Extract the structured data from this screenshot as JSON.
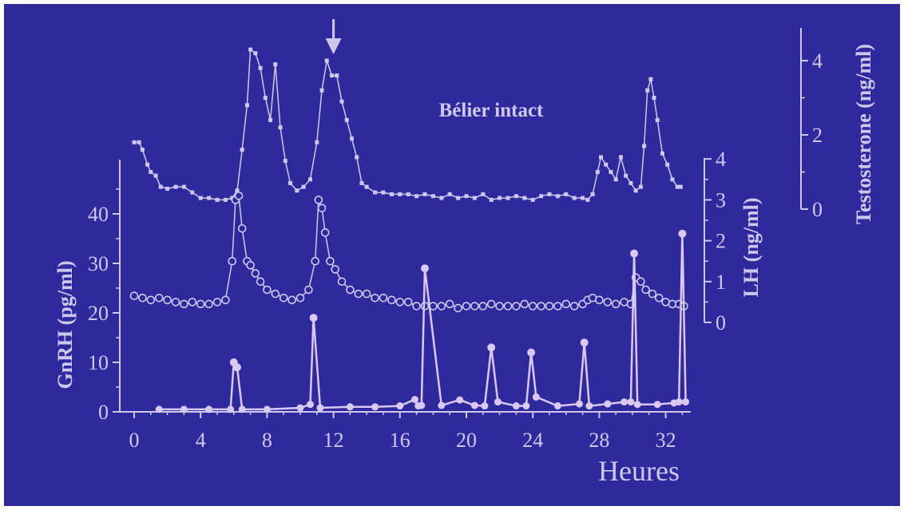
{
  "colors": {
    "background": "#2e2a9e",
    "foreground": "#cfc8ee",
    "gnrh": "#d9c8f2"
  },
  "annotation": {
    "label": "Bélier intact"
  },
  "chart_data": {
    "type": "line",
    "title": "",
    "xlabel": "Heures",
    "xlim": [
      0,
      33.5
    ],
    "xticks": [
      "0",
      "4",
      "8",
      "12",
      "16",
      "20",
      "24",
      "28",
      "32"
    ],
    "arrow_at_x": 12,
    "grid": false,
    "axes": {
      "gnrh": {
        "label": "GnRH (pg/ml)",
        "ylim": [
          0,
          50
        ],
        "ticks": [
          "0",
          "10",
          "20",
          "30",
          "40"
        ]
      },
      "lh": {
        "label": "LH (ng/ml)",
        "ylim": [
          0,
          4
        ],
        "ticks": [
          "0",
          "1",
          "2",
          "3",
          "4"
        ]
      },
      "testosterone": {
        "label": "Testosterone (ng/ml)",
        "ylim": [
          0,
          4.7
        ],
        "ticks": [
          "0",
          "2",
          "4"
        ]
      }
    },
    "series": [
      {
        "axis": "testosterone",
        "marker": "small-square",
        "x": [
          0,
          0.3,
          0.5,
          0.8,
          1,
          1.3,
          1.6,
          2,
          2.5,
          3,
          3.5,
          4,
          4.5,
          5,
          5.5,
          5.9,
          6.2,
          6.5,
          6.8,
          7.0,
          7.3,
          7.6,
          7.9,
          8.2,
          8.5,
          8.8,
          9.1,
          9.4,
          9.8,
          10.2,
          10.6,
          11.0,
          11.3,
          11.6,
          11.9,
          12.2,
          12.5,
          12.8,
          13.1,
          13.4,
          13.7,
          14,
          14.5,
          15,
          15.5,
          16,
          16.5,
          17,
          17.5,
          18,
          18.5,
          19,
          19.5,
          20,
          20.5,
          21,
          21.5,
          22,
          22.5,
          23,
          23.5,
          24,
          24.5,
          25,
          25.5,
          26,
          26.5,
          27,
          27.3,
          27.6,
          27.9,
          28.1,
          28.4,
          28.7,
          29.0,
          29.3,
          29.6,
          29.9,
          30.2,
          30.5,
          30.7,
          30.9,
          31.1,
          31.3,
          31.5,
          31.8,
          32.1,
          32.4,
          32.7,
          32.9
        ],
        "y": [
          1.8,
          1.8,
          1.6,
          1.2,
          1.0,
          0.9,
          0.6,
          0.55,
          0.6,
          0.6,
          0.45,
          0.3,
          0.3,
          0.25,
          0.25,
          0.3,
          0.5,
          1.6,
          2.8,
          4.3,
          4.2,
          3.8,
          3.0,
          2.4,
          3.9,
          2.2,
          1.3,
          0.7,
          0.5,
          0.6,
          0.8,
          1.8,
          3.2,
          4.0,
          3.6,
          3.6,
          2.9,
          2.4,
          1.9,
          1.4,
          0.7,
          0.6,
          0.45,
          0.45,
          0.4,
          0.4,
          0.4,
          0.35,
          0.4,
          0.35,
          0.3,
          0.4,
          0.3,
          0.35,
          0.3,
          0.4,
          0.25,
          0.3,
          0.3,
          0.35,
          0.3,
          0.25,
          0.35,
          0.4,
          0.35,
          0.4,
          0.3,
          0.3,
          0.25,
          0.4,
          1.0,
          1.4,
          1.2,
          1.0,
          0.8,
          1.4,
          0.9,
          0.7,
          0.5,
          0.6,
          1.7,
          3.2,
          3.5,
          3.0,
          2.4,
          1.5,
          1.2,
          0.8,
          0.6,
          0.6
        ]
      },
      {
        "axis": "lh",
        "marker": "open-circle",
        "x": [
          0,
          0.5,
          1,
          1.5,
          2,
          2.5,
          3,
          3.5,
          4,
          4.5,
          5,
          5.5,
          5.9,
          6.1,
          6.3,
          6.5,
          6.8,
          7.0,
          7.3,
          7.6,
          8.0,
          8.5,
          9,
          9.5,
          10,
          10.5,
          10.9,
          11.1,
          11.3,
          11.5,
          11.8,
          12.1,
          12.5,
          13,
          13.5,
          14,
          14.5,
          15,
          15.5,
          16,
          16.5,
          17,
          17.5,
          18,
          18.5,
          19,
          19.5,
          20,
          20.5,
          21,
          21.5,
          22,
          22.5,
          23,
          23.5,
          24,
          24.5,
          25,
          25.5,
          26,
          26.5,
          27,
          27.3,
          27.6,
          28,
          28.5,
          29,
          29.5,
          29.9,
          30.2,
          30.5,
          30.8,
          31.2,
          31.6,
          32,
          32.4,
          32.8,
          33.1
        ],
        "y": [
          0.65,
          0.6,
          0.55,
          0.6,
          0.55,
          0.5,
          0.45,
          0.5,
          0.45,
          0.45,
          0.5,
          0.55,
          1.5,
          3.0,
          3.1,
          2.3,
          1.5,
          1.4,
          1.2,
          1.0,
          0.8,
          0.7,
          0.6,
          0.55,
          0.6,
          0.8,
          1.5,
          3.0,
          2.8,
          2.2,
          1.5,
          1.3,
          1.0,
          0.8,
          0.7,
          0.7,
          0.6,
          0.6,
          0.55,
          0.5,
          0.5,
          0.4,
          0.4,
          0.4,
          0.4,
          0.45,
          0.35,
          0.4,
          0.4,
          0.4,
          0.45,
          0.4,
          0.4,
          0.4,
          0.45,
          0.4,
          0.4,
          0.4,
          0.4,
          0.45,
          0.4,
          0.45,
          0.55,
          0.6,
          0.55,
          0.5,
          0.45,
          0.5,
          0.45,
          1.1,
          1.0,
          0.8,
          0.7,
          0.6,
          0.5,
          0.45,
          0.45,
          0.4
        ]
      },
      {
        "axis": "gnrh",
        "marker": "filled-circle",
        "x": [
          1.5,
          3,
          4.5,
          5.8,
          6.0,
          6.2,
          6.5,
          8,
          10,
          10.6,
          10.8,
          11.2,
          13,
          14.5,
          16,
          16.9,
          17.1,
          17.3,
          17.5,
          18.5,
          19.6,
          20.5,
          21.1,
          21.5,
          21.9,
          23,
          23.6,
          23.9,
          24.2,
          25.5,
          26.8,
          27.1,
          27.4,
          28.5,
          29.5,
          29.9,
          30.1,
          30.3,
          31.5,
          32.5,
          32.8,
          33.0,
          33.2
        ],
        "y": [
          0.5,
          0.5,
          0.5,
          0.5,
          10,
          9,
          0.5,
          0.5,
          0.8,
          1.5,
          19,
          0.8,
          1.0,
          1.0,
          1.2,
          2.5,
          1.2,
          1.3,
          29,
          1.3,
          2.4,
          1.3,
          1.2,
          13,
          2.0,
          1.2,
          1.2,
          12,
          3.0,
          1.2,
          1.6,
          14,
          1.2,
          1.6,
          2.0,
          2.0,
          32,
          1.5,
          1.5,
          1.8,
          2.0,
          36,
          2.0
        ]
      }
    ]
  }
}
